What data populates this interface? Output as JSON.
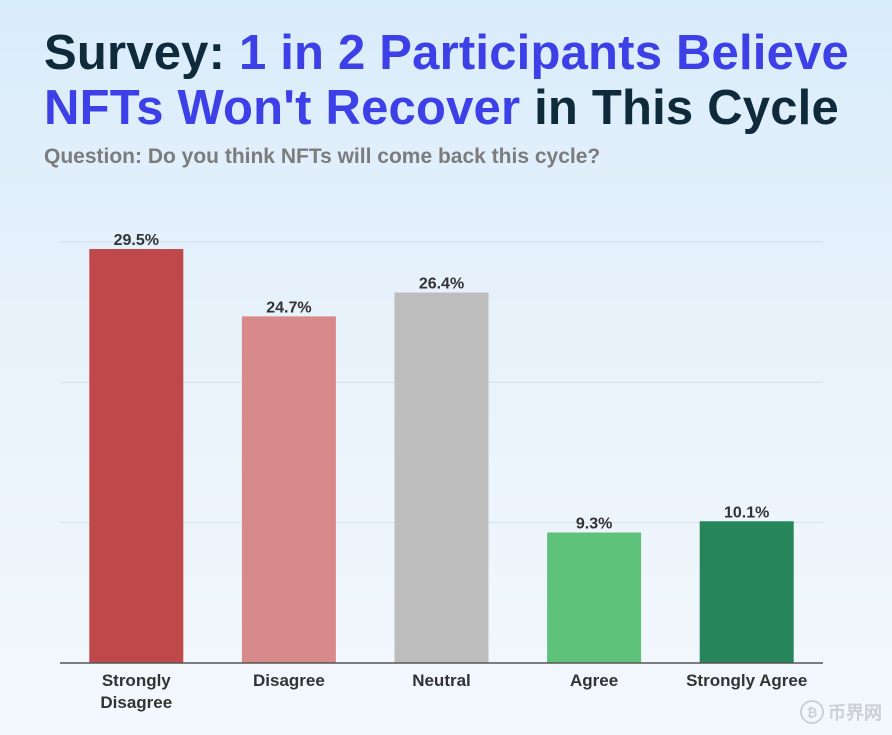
{
  "header": {
    "title_part1": "Survey: ",
    "title_part2": "1 in 2 Participants Believe NFTs Won't Recover",
    "title_part3": " in This Cycle",
    "subtitle": "Question: Do you think NFTs will come back this cycle?"
  },
  "watermark": {
    "icon": "bitcoin-coin-icon",
    "icon_glyph": "₿",
    "text": "币界网"
  },
  "colors": {
    "title": "#0f2a3a",
    "highlight": "#3c40e6",
    "subtitle": "#7c7c7c",
    "grid": "#d7dfe8",
    "axis": "#555555",
    "label": "#333333"
  },
  "chart_data": {
    "type": "bar",
    "title": "Survey: 1 in 2 Participants Believe NFTs Won't Recover in This Cycle",
    "xlabel": "",
    "ylabel": "",
    "ylim": [
      0,
      30
    ],
    "grid": true,
    "categories": [
      "Strongly Disagree",
      "Disagree",
      "Neutral",
      "Agree",
      "Strongly Agree"
    ],
    "category_lines": [
      [
        "Strongly",
        "Disagree"
      ],
      [
        "Disagree"
      ],
      [
        "Neutral"
      ],
      [
        "Agree"
      ],
      [
        "Strongly Agree"
      ]
    ],
    "values": [
      29.5,
      24.7,
      26.4,
      9.3,
      10.1
    ],
    "value_labels": [
      "29.5%",
      "24.7%",
      "26.4%",
      "9.3%",
      "10.1%"
    ],
    "bar_colors": [
      "#bf494a",
      "#d88a8b",
      "#bdbdbd",
      "#5ec27a",
      "#26855a"
    ]
  }
}
